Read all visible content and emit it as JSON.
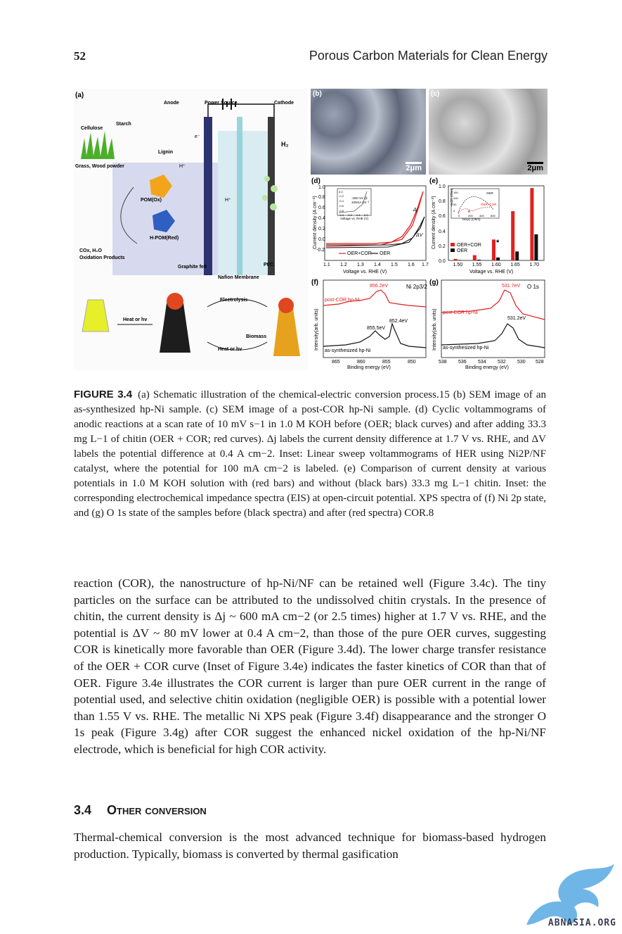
{
  "header": {
    "page_number": "52",
    "running_title": "Porous Carbon Materials for Clean Energy"
  },
  "figure": {
    "a": {
      "label": "(a)",
      "anode": "Anode",
      "power_source": "Power Source",
      "cathode": "Cathode",
      "starch": "Starch",
      "cellulose": "Cellulose",
      "lignin": "Lignin",
      "grass": "Grass, Wood powder",
      "h2": "H₂",
      "hplus": "H⁺",
      "eminus": "e⁻",
      "pom": "POM(Ox)",
      "hpom": "H-POM(Red)",
      "products1": "COx, H₂O",
      "products2": "Oxidation Products",
      "graphite": "Graphite felt",
      "nafion": "Nafion Membrane",
      "ptc": "Pt/C",
      "heat1": "Heat or hv",
      "electrolysis": "Electrolysis",
      "heat2": "Heat or hv",
      "biomass": "Biomass"
    },
    "b": {
      "label": "(b)",
      "scale": "2μm"
    },
    "c": {
      "label": "(c)",
      "scale": "2μm"
    },
    "d": {
      "label": "(d)",
      "ylabel": "Current density (A cm⁻²)",
      "xlabel": "Voltage vs. RHE (V)",
      "xticks": [
        "1.1",
        "1.2",
        "1.3",
        "1.4",
        "1.5",
        "1.6",
        "1.7"
      ],
      "yticks": [
        "1.0",
        "0.8",
        "0.6",
        "0.4",
        "0.2",
        "0.0",
        "-0.2"
      ],
      "legend": [
        "OER+COR",
        "OER"
      ],
      "dj": "Δj",
      "dv": "ΔV",
      "inset_note1": "-180 mV @",
      "inset_note2": "100mA cm⁻²",
      "inset_xlabel": "Voltage vs. RHE (V)",
      "inset_xticks": [
        "-0.3",
        "-0.2",
        "-0.1",
        "0.0"
      ],
      "inset_yticks": [
        "0.0",
        "-0.2",
        "-0.4",
        "-0.6",
        "-0.8"
      ]
    },
    "e": {
      "label": "(e)",
      "ylabel": "Current density (A cm⁻²)",
      "xlabel": "Voltage vs. RHE (V)",
      "xticks": [
        "1.50",
        "1.55",
        "1.60",
        "1.65",
        "1.70"
      ],
      "yticks": [
        "1.0",
        "0.8",
        "0.6",
        "0.4",
        "0.2",
        "0.0"
      ],
      "legend": [
        "OER+COR",
        "OER"
      ],
      "star": "*",
      "inset_ylabel": "-Im(Z) (Ohm)",
      "inset_xlabel": "Re(Z) (Ohm)",
      "inset_xticks": [
        "0",
        "200",
        "400",
        "600"
      ],
      "inset_yticks": [
        "150",
        "100",
        "50",
        "0"
      ],
      "inset_oer": "OER",
      "inset_oercor": "OER+COR",
      "inset_r": "R"
    },
    "f": {
      "label": "(f)",
      "title": "Ni 2p3/2",
      "ylabel": "Intensity(arb. units)",
      "xlabel": "Binding energy (eV)",
      "xticks": [
        "865",
        "860",
        "855",
        "850"
      ],
      "peak_red": "856.2eV",
      "peak_black1": "855.5eV",
      "peak_black2": "852.4eV",
      "red_label": "post-COR hp-Ni",
      "black_label": "as-synthesized hp-Ni"
    },
    "g": {
      "label": "(g)",
      "title": "O 1s",
      "ylabel": "Intensity(arb. units)",
      "xlabel": "Binding energy (eV)",
      "xticks": [
        "538",
        "536",
        "534",
        "532",
        "530",
        "528"
      ],
      "peak_red": "531.7eV",
      "peak_black": "531.2eV",
      "red_label": "post-COR hp-Ni",
      "black_label": "as-synthesized hp-Ni"
    }
  },
  "chart_data": [
    {
      "type": "bar",
      "panel": "e",
      "categories": [
        "1.50",
        "1.55",
        "1.60",
        "1.65",
        "1.70"
      ],
      "series": [
        {
          "name": "OER+COR",
          "values": [
            0.02,
            0.07,
            0.28,
            0.66,
            0.97
          ]
        },
        {
          "name": "OER",
          "values": [
            0.0,
            0.01,
            0.04,
            0.12,
            0.35
          ]
        }
      ],
      "xlabel": "Voltage vs. RHE (V)",
      "ylabel": "Current density (A cm⁻²)",
      "ylim": [
        0,
        1.0
      ],
      "colors": [
        "#e02020",
        "#111111"
      ]
    }
  ],
  "caption": {
    "label": "FIGURE 3.4",
    "text": "(a) Schematic illustration of the chemical-electric conversion process.15 (b) SEM image of an as-synthesized hp-Ni sample. (c) SEM image of a post-COR hp-Ni sample. (d) Cyclic voltammograms of anodic reactions at a scan rate of 10 mV s−1 in 1.0 M KOH before (OER; black curves) and after adding 33.3 mg L−1 of chitin (OER + COR; red curves). Δj labels the current density difference at 1.7 V vs. RHE, and ΔV labels the potential difference at 0.4 A cm−2. Inset: Linear sweep voltammograms of HER using Ni2P/NF catalyst, where the potential for 100 mA cm−2 is labeled. (e) Comparison of current density at various potentials in 1.0 M KOH solution with (red bars) and without (black bars) 33.3 mg L−1 chitin. Inset: the corresponding electrochemical impedance spectra (EIS) at open-circuit potential. XPS spectra of (f) Ni 2p state, and (g) O 1s state of the samples before (black spectra) and after (red spectra) COR.8"
  },
  "body": {
    "paragraph1": "reaction (COR), the nanostructure of hp-Ni/NF can be retained well (Figure 3.4c). The tiny particles on the surface can be attributed to the undissolved chitin crystals. In the presence of chitin, the current density is Δj ~ 600 mA cm−2 (or 2.5 times) higher at 1.7 V vs. RHE, and the potential is ΔV ~ 80 mV lower at 0.4 A cm−2, than those of the pure OER curves, suggesting COR is kinetically more favorable than OER (Figure 3.4d). The lower charge transfer resistance of the OER + COR curve (Inset of Figure 3.4e) indicates the faster kinetics of COR than that of OER. Figure 3.4e illustrates the COR current is larger than pure OER current in the range of potential used, and selective chitin oxidation (negligible OER) is possible with a potential lower than 1.55 V vs. RHE. The metallic Ni XPS peak (Figure 3.4f) disappearance and the stronger O 1s peak (Figure 3.4g) after COR suggest the enhanced nickel oxidation of the hp-Ni/NF electrode, which is beneficial for high COR activity.",
    "section_number": "3.4",
    "section_title": "Other conversion",
    "paragraph2": "Thermal-chemical conversion is the most advanced technique for biomass-based hydrogen production. Typically, biomass is converted by thermal gasification"
  },
  "watermark": {
    "text": "ABNASIA.ORG",
    "color": "#6fb6e6"
  }
}
